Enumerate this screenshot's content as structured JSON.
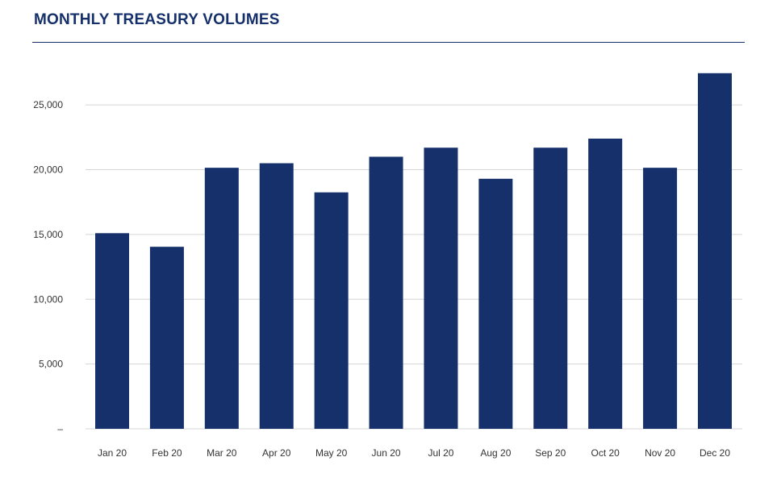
{
  "colors": {
    "title": "#15306b",
    "bar": "#15306b",
    "grid": "#d4d4d4",
    "rule": "#15306b"
  },
  "chart_data": {
    "type": "bar",
    "title": "MONTHLY TREASURY VOLUMES",
    "xlabel": "",
    "ylabel": "",
    "ylim": [
      0,
      27500
    ],
    "grid": true,
    "categories": [
      "Jan 20",
      "Feb 20",
      "Mar 20",
      "Apr 20",
      "May 20",
      "Jun 20",
      "Jul 20",
      "Aug 20",
      "Sep 20",
      "Oct 20",
      "Nov 20",
      "Dec 20"
    ],
    "values": [
      15100,
      14050,
      20150,
      20500,
      18250,
      21000,
      21700,
      19300,
      21700,
      22400,
      20150,
      27450
    ],
    "yticks": [
      0,
      5000,
      10000,
      15000,
      20000,
      25000
    ],
    "ytick_labels": [
      "–",
      "5,000",
      "10,000",
      "15,000",
      "20,000",
      "25,000"
    ]
  }
}
